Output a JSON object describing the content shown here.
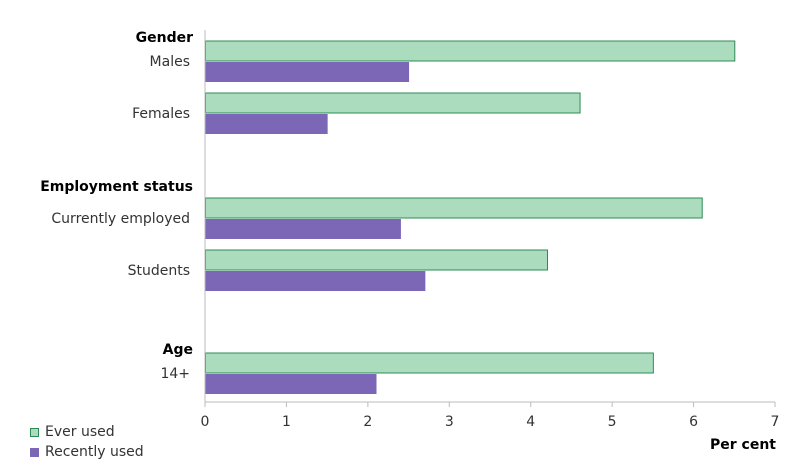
{
  "chart_data": {
    "type": "bar",
    "orientation": "horizontal",
    "xlabel": "Per cent",
    "xlim": [
      0,
      7
    ],
    "xticks": [
      "0",
      "1",
      "2",
      "3",
      "4",
      "5",
      "6",
      "7"
    ],
    "groups": [
      {
        "title": "Gender",
        "categories": [
          "Males",
          "Females"
        ]
      },
      {
        "title": "Employment status",
        "categories": [
          "Currently employed",
          "Students"
        ]
      },
      {
        "title": "Age",
        "categories": [
          "14+"
        ]
      }
    ],
    "categories": [
      "Males",
      "Females",
      "Currently employed",
      "Students",
      "14+"
    ],
    "series": [
      {
        "name": "Ever used",
        "color": "#abdcbe",
        "values": [
          6.5,
          4.6,
          6.1,
          4.2,
          5.5
        ]
      },
      {
        "name": "Recently used",
        "color": "#7b67b5",
        "values": [
          2.5,
          1.5,
          2.4,
          2.7,
          2.1
        ]
      }
    ],
    "grid": false,
    "legend_position": "bottom-left"
  }
}
